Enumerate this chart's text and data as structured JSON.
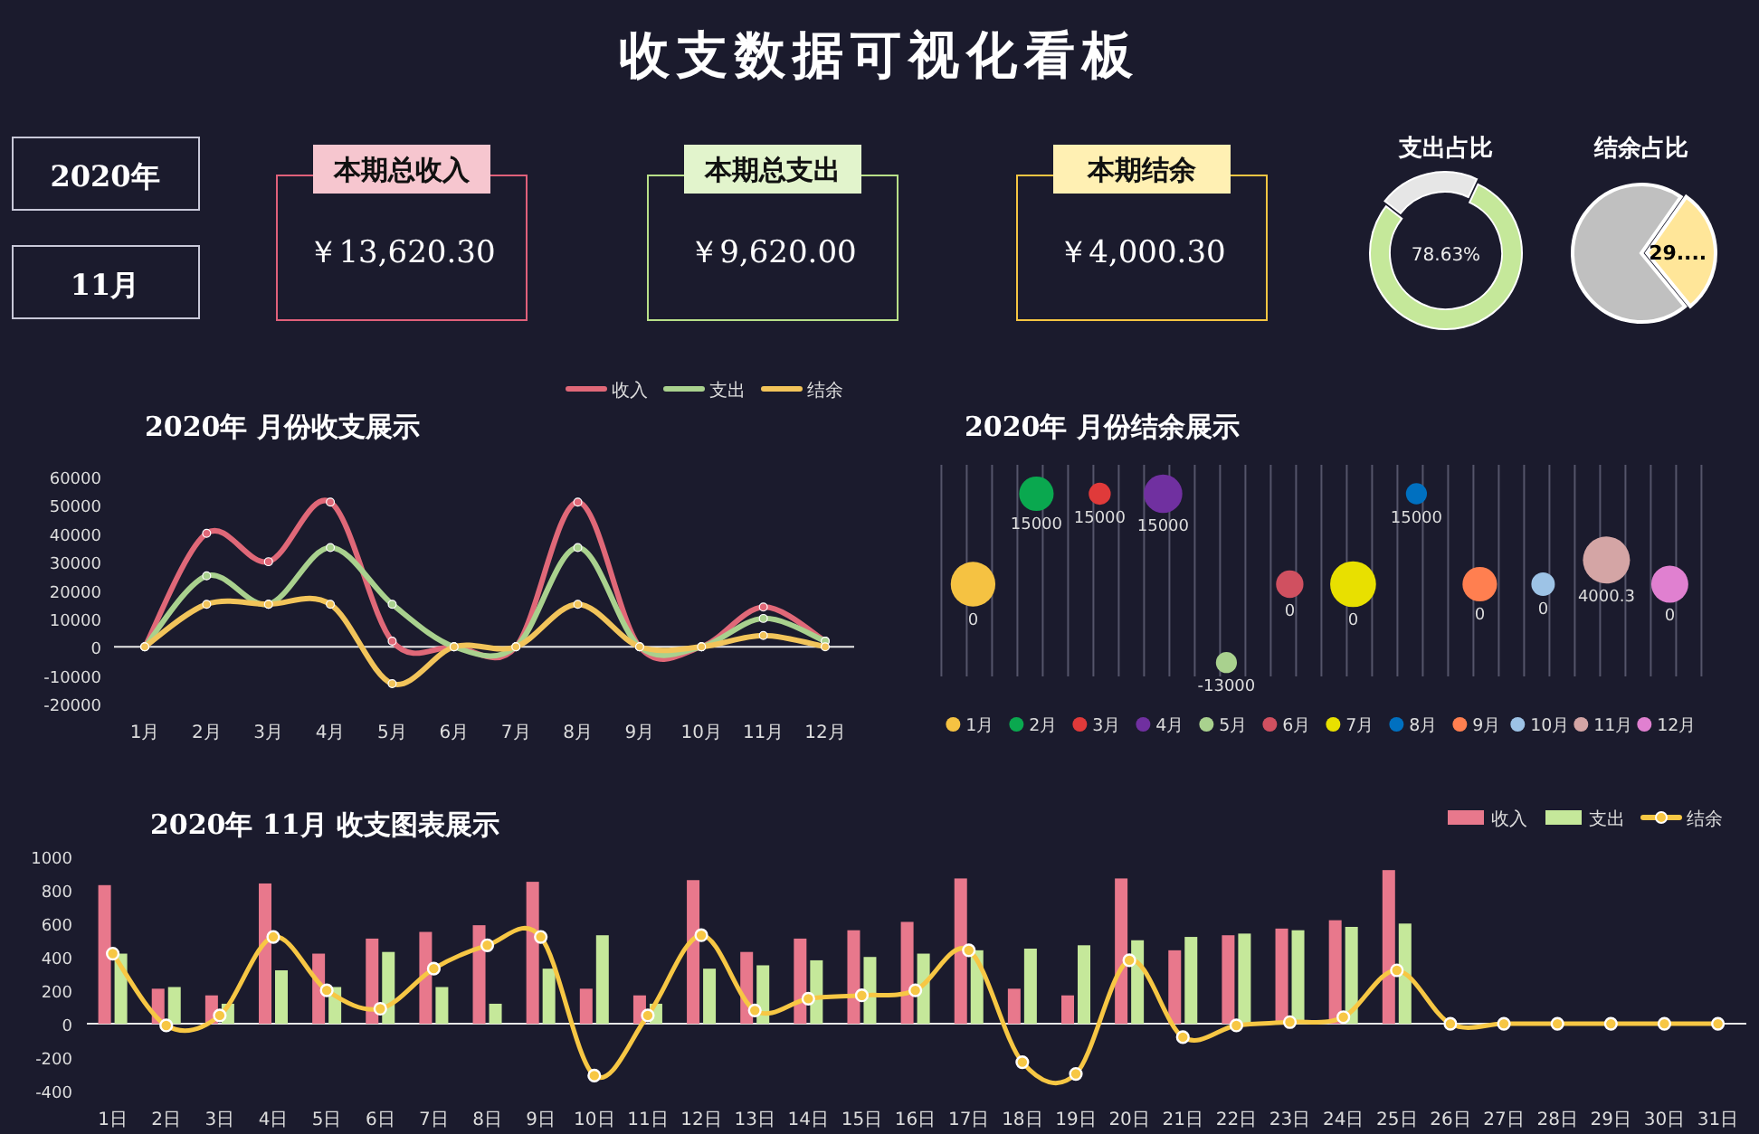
{
  "chart_data": [
    {
      "type": "other",
      "title": "收支数据可视化看板",
      "annotations": [
        "2020年",
        "11月",
        "本期总收入",
        "￥13,620.30",
        "本期总支出",
        "￥9,620.00",
        "本期结余",
        "￥4,000.30"
      ]
    },
    {
      "type": "donut",
      "title": "支出占比",
      "categories": [
        null,
        null
      ],
      "values": [
        78.63,
        21.37
      ],
      "colors": [
        "#c5e89a",
        "#e6e6e6"
      ],
      "value_labels": [
        "78.63%",
        null
      ]
    },
    {
      "type": "pie",
      "title": "结余占比",
      "categories": [
        null,
        null
      ],
      "values": [
        29.37,
        70.63
      ],
      "colors": [
        "#ffe699",
        "#c0c0c0"
      ],
      "value_labels": [
        "29....",
        null
      ]
    },
    {
      "type": "line",
      "title": "2020年 月份收支展示",
      "categories": [
        "1月",
        "2月",
        "3月",
        "4月",
        "5月",
        "6月",
        "7月",
        "8月",
        "9月",
        "10月",
        "11月",
        "12月"
      ],
      "series": [
        {
          "name": "收入",
          "color": "#e06878",
          "values": [
            0,
            40000,
            30000,
            51000,
            2000,
            0,
            0,
            51000,
            0,
            0,
            14000,
            2000
          ]
        },
        {
          "name": "支出",
          "color": "#a9d18e",
          "values": [
            0,
            25000,
            15000,
            35000,
            15000,
            0,
            0,
            35000,
            0,
            0,
            10000,
            2000
          ]
        },
        {
          "name": "结余",
          "color": "#f2c45a",
          "values": [
            0,
            15000,
            15000,
            15000,
            -13000,
            0,
            0,
            15000,
            0,
            0,
            4000,
            0
          ]
        }
      ],
      "ylim": [
        -20000,
        60000
      ],
      "yticks": [
        -20000,
        -10000,
        0,
        10000,
        20000,
        30000,
        40000,
        50000,
        60000
      ],
      "legend": "top right",
      "marker": "circle"
    },
    {
      "type": "bubble",
      "title": "2020年 月份结余展示",
      "categories": [
        "1月",
        "2月",
        "3月",
        "4月",
        "5月",
        "6月",
        "7月",
        "8月",
        "9月",
        "10月",
        "11月",
        "12月"
      ],
      "values": [
        0,
        15000,
        15000,
        15000,
        -13000,
        0,
        0,
        15000,
        0,
        0,
        4000.3,
        0
      ],
      "sizes": [
        0.9,
        0.54,
        0.22,
        0.67,
        0.2,
        0.34,
        0.95,
        0.2,
        0.54,
        0.25,
        1,
        0.62
      ],
      "colors": [
        "#f5c242",
        "#0aa84f",
        "#e03a3a",
        "#7030a0",
        "#a9d18e",
        "#d05060",
        "#e8e000",
        "#0070c0",
        "#ff7f50",
        "#9dc3e6",
        "#d4a5a5",
        "#e080d0"
      ],
      "data_labels": true,
      "grid": "x"
    },
    {
      "type": "bar",
      "title": "2020年 11月 收支图表展示",
      "categories": [
        "1日",
        "2日",
        "3日",
        "4日",
        "5日",
        "6日",
        "7日",
        "8日",
        "9日",
        "10日",
        "11日",
        "12日",
        "13日",
        "14日",
        "15日",
        "16日",
        "17日",
        "18日",
        "19日",
        "20日",
        "21日",
        "22日",
        "23日",
        "24日",
        "25日",
        "26日",
        "27日",
        "28日",
        "29日",
        "30日",
        "31日"
      ],
      "series": [
        {
          "name": "收入",
          "color": "#e8788c",
          "values": [
            830,
            210,
            170,
            840,
            420,
            510,
            550,
            590,
            850,
            210,
            170,
            860,
            430,
            510,
            560,
            610,
            870,
            210,
            170,
            870,
            440,
            530,
            570,
            620,
            920,
            0,
            0,
            0,
            0,
            0,
            0
          ]
        },
        {
          "name": "支出",
          "color": "#c5e89a",
          "values": [
            420,
            220,
            120,
            320,
            220,
            430,
            220,
            120,
            330,
            530,
            120,
            330,
            350,
            380,
            400,
            420,
            440,
            450,
            470,
            500,
            520,
            540,
            560,
            580,
            600,
            0,
            0,
            0,
            0,
            0,
            0
          ]
        },
        {
          "name": "结余",
          "type": "line",
          "color": "#f7c744",
          "values": [
            420,
            -10,
            50,
            520,
            200,
            90,
            330,
            470,
            520,
            -310,
            50,
            530,
            80,
            150,
            170,
            200,
            440,
            -230,
            -300,
            380,
            -80,
            -10,
            10,
            40,
            320,
            0,
            0,
            0,
            0,
            0,
            0
          ]
        }
      ],
      "ylim": [
        -400,
        1000
      ],
      "yticks": [
        -400,
        -200,
        0,
        200,
        400,
        600,
        800,
        1000
      ],
      "legend": "top right",
      "marker": "circle"
    }
  ]
}
